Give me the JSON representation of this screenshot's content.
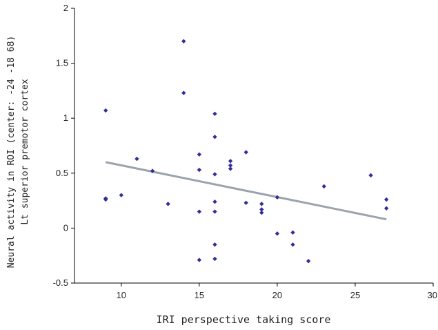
{
  "chart_data": {
    "type": "scatter",
    "title": "",
    "xlabel": "IRI perspective taking score",
    "ylabel_lines": [
      "Neural activity in ROI (center: -24 -18  68)",
      "Lt superior premotor cortex"
    ],
    "xlim": [
      7,
      30
    ],
    "ylim": [
      -0.5,
      2
    ],
    "x_ticks": [
      10,
      15,
      20,
      25,
      30
    ],
    "y_ticks": [
      -0.5,
      0,
      0.5,
      1,
      1.5,
      2
    ],
    "x_tick_labels": [
      "10",
      "15",
      "20",
      "25",
      "30"
    ],
    "y_tick_labels": [
      "-0.5",
      "0",
      "0.5",
      "1",
      "1.5",
      "2"
    ],
    "grid": false,
    "marker_color": "#2f2f9a",
    "trendline_color": "#9ba3ac",
    "points": [
      {
        "x": 9,
        "y": 1.07
      },
      {
        "x": 9,
        "y": 0.27
      },
      {
        "x": 9,
        "y": 0.26
      },
      {
        "x": 10,
        "y": 0.3
      },
      {
        "x": 11,
        "y": 0.63
      },
      {
        "x": 12,
        "y": 0.52
      },
      {
        "x": 13,
        "y": 0.22
      },
      {
        "x": 14,
        "y": 1.7
      },
      {
        "x": 14,
        "y": 1.23
      },
      {
        "x": 15,
        "y": 0.67
      },
      {
        "x": 15,
        "y": 0.53
      },
      {
        "x": 15,
        "y": 0.15
      },
      {
        "x": 15,
        "y": -0.29
      },
      {
        "x": 16,
        "y": 1.04
      },
      {
        "x": 16,
        "y": 0.83
      },
      {
        "x": 16,
        "y": 0.49
      },
      {
        "x": 16,
        "y": 0.24
      },
      {
        "x": 16,
        "y": 0.15
      },
      {
        "x": 16,
        "y": -0.15
      },
      {
        "x": 16,
        "y": -0.28
      },
      {
        "x": 17,
        "y": 0.61
      },
      {
        "x": 17,
        "y": 0.57
      },
      {
        "x": 17,
        "y": 0.54
      },
      {
        "x": 18,
        "y": 0.69
      },
      {
        "x": 18,
        "y": 0.23
      },
      {
        "x": 19,
        "y": 0.22
      },
      {
        "x": 19,
        "y": 0.17
      },
      {
        "x": 19,
        "y": 0.14
      },
      {
        "x": 20,
        "y": 0.28
      },
      {
        "x": 20,
        "y": -0.05
      },
      {
        "x": 21,
        "y": -0.04
      },
      {
        "x": 21,
        "y": -0.15
      },
      {
        "x": 22,
        "y": -0.3
      },
      {
        "x": 23,
        "y": 0.38
      },
      {
        "x": 26,
        "y": 0.48
      },
      {
        "x": 27,
        "y": 0.26
      },
      {
        "x": 27,
        "y": 0.18
      }
    ],
    "trendline": {
      "x": [
        9,
        27
      ],
      "y": [
        0.6,
        0.08
      ]
    }
  }
}
